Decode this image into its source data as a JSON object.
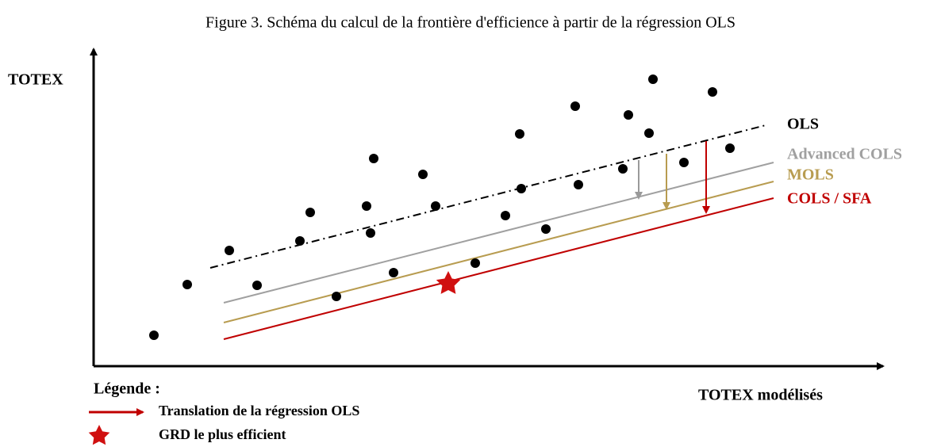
{
  "title": "Figure 3. Schéma du calcul de la frontière d'efficience à partir de la régression OLS",
  "y_axis_label": "TOTEX",
  "x_axis_label": "TOTEX modélisés",
  "lines": [
    {
      "label": "OLS"
    },
    {
      "label": "Advanced COLS"
    },
    {
      "label": "MOLS"
    },
    {
      "label": "COLS / SFA"
    }
  ],
  "legend": {
    "title": "Légende :",
    "items": [
      {
        "label": "Translation de la régression OLS"
      },
      {
        "label": "GRD le plus efficient"
      }
    ]
  }
}
